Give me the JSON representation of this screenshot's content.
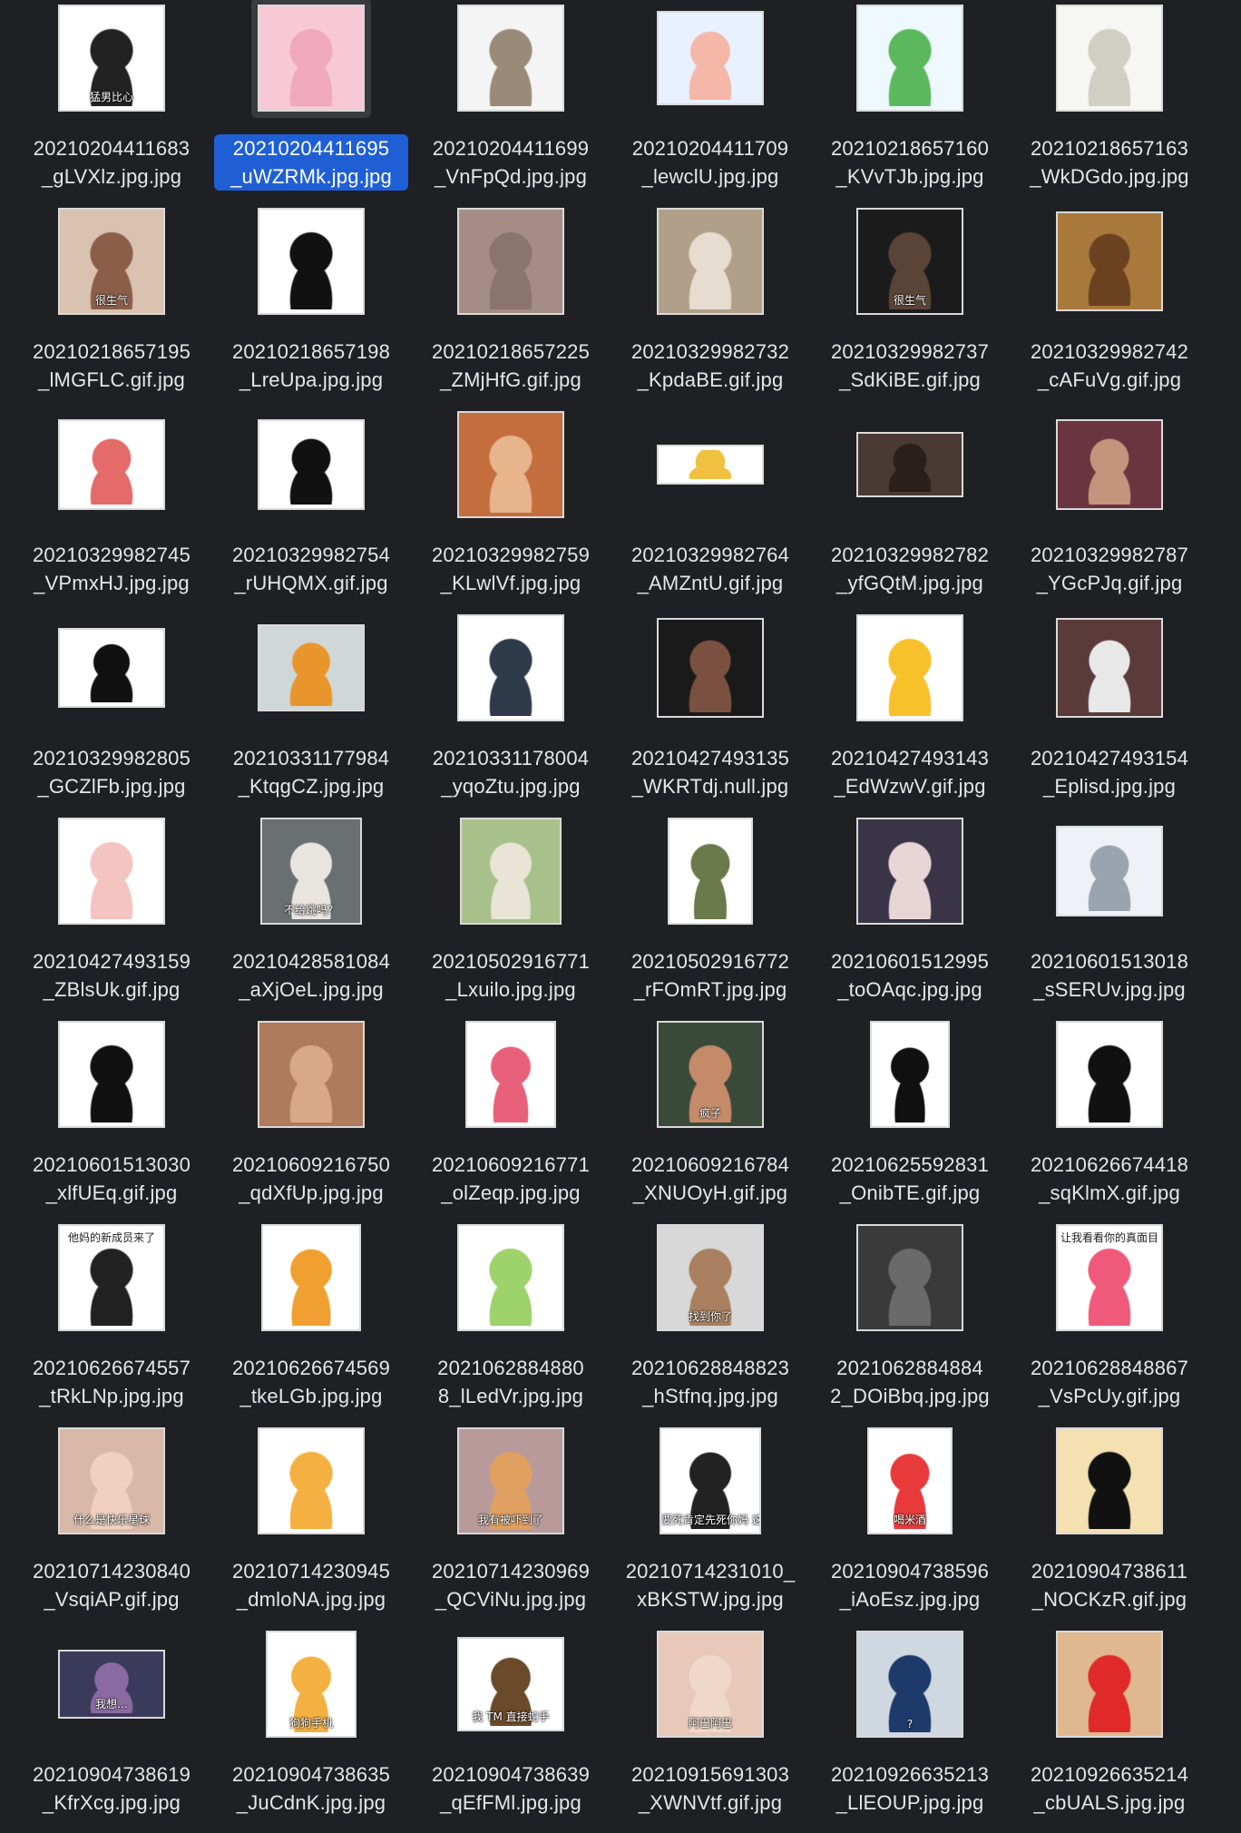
{
  "accent_color": "#1f5fd6",
  "files": [
    {
      "line1": "20210204411683",
      "line2": "_gLVXlz.jpg.jpg",
      "caption": "猛男比心",
      "bg": "#ffffff",
      "art": "#222",
      "w": 118,
      "h": 118
    },
    {
      "line1": "20210204411695",
      "line2": "_uWZRMk.jpg.jpg",
      "caption": "",
      "bg": "#f7c9d6",
      "art": "#f0a8bf",
      "w": 118,
      "h": 118,
      "selected": true
    },
    {
      "line1": "20210204411699",
      "line2": "_VnFpQd.jpg.jpg",
      "caption": "",
      "bg": "#f4f4f4",
      "art": "#9a8a78",
      "w": 118,
      "h": 118
    },
    {
      "line1": "20210204411709",
      "line2": "_lewclU.jpg.jpg",
      "caption": "",
      "bg": "#e9f0ff",
      "art": "#f5b7a8",
      "w": 118,
      "h": 104
    },
    {
      "line1": "20210218657160",
      "line2": "_KVvTJb.jpg.jpg",
      "caption": "",
      "bg": "#eef8ff",
      "art": "#5cb85c",
      "w": 118,
      "h": 118
    },
    {
      "line1": "20210218657163",
      "line2": "_WkDGdo.jpg.jpg",
      "caption": "",
      "bg": "#f6f6f2",
      "art": "#cfcfc4",
      "w": 118,
      "h": 118
    },
    {
      "line1": "20210218657195",
      "line2": "_lMGFLC.gif.jpg",
      "caption": "很生气",
      "bg": "#d9c2b0",
      "art": "#8b5e4a",
      "w": 118,
      "h": 118
    },
    {
      "line1": "20210218657198",
      "line2": "_LreUpa.jpg.jpg",
      "caption": "",
      "bg": "#ffffff",
      "art": "#111",
      "w": 118,
      "h": 118
    },
    {
      "line1": "20210218657225",
      "line2": "_ZMjHfG.gif.jpg",
      "caption": "",
      "bg": "#a58d86",
      "art": "#8a746e",
      "w": 118,
      "h": 118
    },
    {
      "line1": "20210329982732",
      "line2": "_KpdaBE.gif.jpg",
      "caption": "",
      "bg": "#b0a08a",
      "art": "#e6dccf",
      "w": 118,
      "h": 118
    },
    {
      "line1": "20210329982737",
      "line2": "_SdKiBE.gif.jpg",
      "caption": "很生气",
      "bg": "#1b1b1b",
      "art": "#5a4438",
      "w": 118,
      "h": 118
    },
    {
      "line1": "20210329982742",
      "line2": "_cAFuVg.gif.jpg",
      "caption": "",
      "bg": "#a9793c",
      "art": "#6b4220",
      "w": 118,
      "h": 110
    },
    {
      "line1": "20210329982745",
      "line2": "_VPmxHJ.jpg.jpg",
      "caption": "",
      "bg": "#ffffff",
      "art": "#e56a6a",
      "w": 118,
      "h": 100
    },
    {
      "line1": "20210329982754",
      "line2": "_rUHQMX.gif.jpg",
      "caption": "",
      "bg": "#ffffff",
      "art": "#111",
      "w": 118,
      "h": 100
    },
    {
      "line1": "20210329982759",
      "line2": "_KLwlVf.jpg.jpg",
      "caption": "",
      "bg": "#c46e3e",
      "art": "#e8b48c",
      "w": 118,
      "h": 118
    },
    {
      "line1": "20210329982764",
      "line2": "_AMZntU.gif.jpg",
      "caption": "",
      "bg": "#ffffff",
      "art": "#f0c040",
      "w": 118,
      "h": 44
    },
    {
      "line1": "20210329982782",
      "line2": "_yfGQtM.jpg.jpg",
      "caption": "",
      "bg": "#4a3a34",
      "art": "#2a1f1a",
      "w": 118,
      "h": 72
    },
    {
      "line1": "20210329982787",
      "line2": "_YGcPJq.gif.jpg",
      "caption": "",
      "bg": "#6a3440",
      "art": "#c4957c",
      "w": 118,
      "h": 100
    },
    {
      "line1": "20210329982805",
      "line2": "_GCZlFb.jpg.jpg",
      "caption": "",
      "bg": "#ffffff",
      "art": "#111",
      "w": 118,
      "h": 88
    },
    {
      "line1": "20210331177984",
      "line2": "_KtqgCZ.jpg.jpg",
      "caption": "",
      "bg": "#cfd8d6",
      "art": "#e8952c",
      "w": 118,
      "h": 96
    },
    {
      "line1": "20210331178004",
      "line2": "_yqoZtu.jpg.jpg",
      "caption": "",
      "bg": "#ffffff",
      "art": "#2f3a4a",
      "w": 118,
      "h": 118
    },
    {
      "line1": "20210427493135",
      "line2": "_WKRTdj.null.jpg",
      "caption": "",
      "bg": "#1a1a1a",
      "art": "#7a5040",
      "w": 118,
      "h": 110
    },
    {
      "line1": "20210427493143",
      "line2": "_EdWzwV.gif.jpg",
      "caption": "",
      "bg": "#ffffff",
      "art": "#f6c12a",
      "w": 118,
      "h": 118
    },
    {
      "line1": "20210427493154",
      "line2": "_Eplisd.jpg.jpg",
      "caption": "",
      "bg": "#5a3b3a",
      "art": "#e8e8e8",
      "w": 118,
      "h": 110
    },
    {
      "line1": "20210427493159",
      "line2": "_ZBlsUk.gif.jpg",
      "caption": "",
      "bg": "#ffffff",
      "art": "#f3c4c0",
      "w": 118,
      "h": 118
    },
    {
      "line1": "20210428581084",
      "line2": "_aXjOeL.jpg.jpg",
      "caption": "不给跳吗？",
      "bg": "#6a6f70",
      "art": "#e8e4df",
      "w": 112,
      "h": 118
    },
    {
      "line1": "20210502916771",
      "line2": "_Lxuilo.jpg.jpg",
      "caption": "",
      "bg": "#a8c08a",
      "art": "#e8e4d6",
      "w": 112,
      "h": 118
    },
    {
      "line1": "20210502916772",
      "line2": "_rFOmRT.jpg.jpg",
      "caption": "",
      "bg": "#ffffff",
      "art": "#6a7a4a",
      "w": 94,
      "h": 118
    },
    {
      "line1": "20210601512995",
      "line2": "_toOAqc.jpg.jpg",
      "caption": "",
      "bg": "#3a3448",
      "art": "#e8d6d6",
      "w": 118,
      "h": 118
    },
    {
      "line1": "20210601513018",
      "line2": "_sSERUv.jpg.jpg",
      "caption": "",
      "bg": "#eef2f6",
      "art": "#9aa4b0",
      "w": 118,
      "h": 100
    },
    {
      "line1": "20210601513030",
      "line2": "_xlfUEq.gif.jpg",
      "caption": "",
      "bg": "#ffffff",
      "art": "#111",
      "w": 118,
      "h": 118
    },
    {
      "line1": "20210609216750",
      "line2": "_qdXfUp.jpg.jpg",
      "caption": "",
      "bg": "#b07a5c",
      "art": "#d8a888",
      "w": 118,
      "h": 118
    },
    {
      "line1": "20210609216771",
      "line2": "_olZeqp.jpg.jpg",
      "caption": "",
      "bg": "#ffffff",
      "art": "#e8607a",
      "w": 100,
      "h": 118
    },
    {
      "line1": "20210609216784",
      "line2": "_XNUOyH.gif.jpg",
      "caption": "疯子",
      "bg": "#3a4a3a",
      "art": "#c48a6a",
      "w": 118,
      "h": 118
    },
    {
      "line1": "20210625592831",
      "line2": "_OnibTE.gif.jpg",
      "caption": "",
      "bg": "#ffffff",
      "art": "#111",
      "w": 88,
      "h": 118
    },
    {
      "line1": "20210626674418",
      "line2": "_sqKlmX.gif.jpg",
      "caption": "",
      "bg": "#ffffff",
      "art": "#111",
      "w": 118,
      "h": 118
    },
    {
      "line1": "20210626674557",
      "line2": "_tRkLNp.jpg.jpg",
      "caption": "他妈的新成员来了",
      "bg": "#ffffff",
      "art": "#222",
      "w": 118,
      "h": 118,
      "caption_top": true
    },
    {
      "line1": "20210626674569",
      "line2": "_tkeLGb.jpg.jpg",
      "caption": "",
      "bg": "#ffffff",
      "art": "#f0a030",
      "w": 110,
      "h": 118
    },
    {
      "line1": "2021062884880",
      "line2": "8_lLedVr.jpg.jpg",
      "caption": "",
      "bg": "#ffffff",
      "art": "#9ed26a",
      "w": 118,
      "h": 118
    },
    {
      "line1": "20210628848823",
      "line2": "_hStfnq.jpg.jpg",
      "caption": "找到你了",
      "bg": "#d8d8d8",
      "art": "#a88060",
      "w": 118,
      "h": 118
    },
    {
      "line1": "2021062884884",
      "line2": "2_DOiBbq.jpg.jpg",
      "caption": "",
      "bg": "#3a3a3a",
      "art": "#6a6a6a",
      "w": 118,
      "h": 118
    },
    {
      "line1": "20210628848867",
      "line2": "_VsPcUy.gif.jpg",
      "caption": "让我看看你的真面目",
      "bg": "#ffffff",
      "art": "#f05a7a",
      "w": 118,
      "h": 118,
      "caption_top": true
    },
    {
      "line1": "20210714230840",
      "line2": "_VsqiAP.gif.jpg",
      "caption": "什么是快乐星球",
      "bg": "#d8b8a8",
      "art": "#f0d0c0",
      "w": 118,
      "h": 118
    },
    {
      "line1": "20210714230945",
      "line2": "_dmloNA.jpg.jpg",
      "caption": "",
      "bg": "#ffffff",
      "art": "#f4b040",
      "w": 118,
      "h": 118
    },
    {
      "line1": "20210714230969",
      "line2": "_QCViNu.jpg.jpg",
      "caption": "我有被吓到了",
      "bg": "#b89a9a",
      "art": "#e0a060",
      "w": 118,
      "h": 118
    },
    {
      "line1": "20210714231010_",
      "line2": "xBKSTW.jpg.jpg",
      "caption": "要死肯定先死你妈 这是大家公认的",
      "bg": "#ffffff",
      "art": "#222",
      "w": 112,
      "h": 118
    },
    {
      "line1": "20210904738596",
      "line2": "_iAoEsz.jpg.jpg",
      "caption": "喝米酒",
      "bg": "#ffffff",
      "art": "#e83a3a",
      "w": 94,
      "h": 118
    },
    {
      "line1": "20210904738611",
      "line2": "_NOCKzR.gif.jpg",
      "caption": "",
      "bg": "#f4e0b0",
      "art": "#111",
      "w": 118,
      "h": 118
    },
    {
      "line1": "20210904738619",
      "line2": "_KfrXcg.jpg.jpg",
      "caption": "我想…",
      "bg": "#3a3a5a",
      "art": "#8a6aa0",
      "w": 118,
      "h": 76
    },
    {
      "line1": "20210904738635",
      "line2": "_JuCdnK.jpg.jpg",
      "caption": "狗狗手机",
      "bg": "#ffffff",
      "art": "#f4b040",
      "w": 100,
      "h": 118
    },
    {
      "line1": "20210904738639",
      "line2": "_qEfFMl.jpg.jpg",
      "caption": "我 TM 直接蛇手",
      "bg": "#ffffff",
      "art": "#6a4a2a",
      "w": 118,
      "h": 104
    },
    {
      "line1": "20210915691303",
      "line2": "_XWNVtf.gif.jpg",
      "caption": "阿巴阿巴",
      "bg": "#e8c8b8",
      "art": "#f0d8c8",
      "w": 118,
      "h": 118
    },
    {
      "line1": "20210926635213",
      "line2": "_LlEOUP.jpg.jpg",
      "caption": "?",
      "bg": "#cfd8e0",
      "art": "#1e3a6a",
      "w": 118,
      "h": 118
    },
    {
      "line1": "20210926635214",
      "line2": "_cbUALS.jpg.jpg",
      "caption": "",
      "bg": "#e0b890",
      "art": "#e02a2a",
      "w": 118,
      "h": 118
    }
  ]
}
